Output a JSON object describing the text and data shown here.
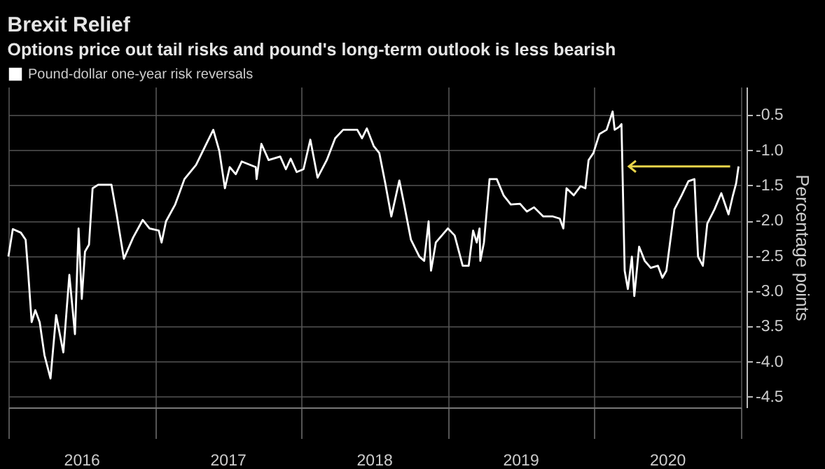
{
  "chart_data": {
    "type": "line",
    "title": "Brexit Relief",
    "subtitle": "Options price out tail risks and pound's long-term outlook is less bearish",
    "ylabel": "Percentage points",
    "x": [
      "2016-01-01",
      "2016-01-12",
      "2016-02-01",
      "2016-02-13",
      "2016-02-19",
      "2016-02-28",
      "2016-03-08",
      "2016-03-19",
      "2016-03-31",
      "2016-04-15",
      "2016-04-29",
      "2016-05-17",
      "2016-06-01",
      "2016-06-15",
      "2016-06-24",
      "2016-07-02",
      "2016-07-10",
      "2016-07-20",
      "2016-07-29",
      "2016-08-12",
      "2016-09-14",
      "2016-09-27",
      "2016-10-15",
      "2016-11-07",
      "2016-12-01",
      "2016-12-18",
      "2017-01-10",
      "2017-01-17",
      "2017-01-28",
      "2017-02-20",
      "2017-03-15",
      "2017-04-13",
      "2017-05-06",
      "2017-05-26",
      "2017-06-10",
      "2017-06-24",
      "2017-07-06",
      "2017-07-21",
      "2017-08-05",
      "2017-09-09",
      "2017-09-11",
      "2017-09-23",
      "2017-10-11",
      "2017-11-09",
      "2017-11-23",
      "2017-12-05",
      "2017-12-20",
      "2018-01-06",
      "2018-01-23",
      "2018-02-10",
      "2018-03-05",
      "2018-03-26",
      "2018-04-15",
      "2018-05-20",
      "2018-06-01",
      "2018-06-13",
      "2018-06-30",
      "2018-07-14",
      "2018-07-29",
      "2018-08-13",
      "2018-09-02",
      "2018-09-14",
      "2018-10-01",
      "2018-10-22",
      "2018-11-03",
      "2018-11-14",
      "2018-11-20",
      "2018-12-02",
      "2019-01-01",
      "2019-01-18",
      "2019-02-07",
      "2019-02-22",
      "2019-03-05",
      "2019-03-14",
      "2019-03-21",
      "2019-03-23",
      "2019-04-01",
      "2019-04-15",
      "2019-05-03",
      "2019-05-20",
      "2019-06-07",
      "2019-06-30",
      "2019-07-17",
      "2019-08-04",
      "2019-08-27",
      "2019-09-20",
      "2019-10-07",
      "2019-10-16",
      "2019-10-24",
      "2019-11-11",
      "2019-11-28",
      "2019-12-10",
      "2019-12-18",
      "2019-12-30",
      "2020-01-14",
      "2020-02-01",
      "2020-02-16",
      "2020-02-21",
      "2020-03-03",
      "2020-03-09",
      "2020-03-17",
      "2020-03-25",
      "2020-04-04",
      "2020-04-10",
      "2020-04-22",
      "2020-05-06",
      "2020-05-21",
      "2020-06-08",
      "2020-06-19",
      "2020-06-29",
      "2020-07-19",
      "2020-08-06",
      "2020-08-23",
      "2020-09-07",
      "2020-09-16",
      "2020-09-28",
      "2020-10-09",
      "2020-10-27",
      "2020-11-13",
      "2020-12-01",
      "2020-12-12",
      "2020-12-20",
      "2020-12-26"
    ],
    "series": [
      {
        "name": "Pound-dollar one-year risk reversals",
        "color": "#ffffff",
        "values": [
          -2.51,
          -2.12,
          -2.17,
          -2.27,
          -2.71,
          -3.44,
          -3.27,
          -3.44,
          -3.91,
          -4.24,
          -3.34,
          -3.87,
          -2.77,
          -3.61,
          -2.11,
          -3.11,
          -2.44,
          -2.34,
          -1.54,
          -1.49,
          -1.49,
          -1.91,
          -2.54,
          -2.24,
          -1.99,
          -2.11,
          -2.14,
          -2.31,
          -2.01,
          -1.77,
          -1.41,
          -1.21,
          -0.94,
          -0.71,
          -1.01,
          -1.54,
          -1.24,
          -1.34,
          -1.16,
          -1.24,
          -1.41,
          -0.91,
          -1.14,
          -1.09,
          -1.27,
          -1.12,
          -1.31,
          -1.27,
          -0.85,
          -1.39,
          -1.14,
          -0.83,
          -0.71,
          -0.71,
          -0.83,
          -0.69,
          -0.94,
          -1.04,
          -1.47,
          -1.94,
          -1.43,
          -1.77,
          -2.27,
          -2.51,
          -2.57,
          -2.01,
          -2.71,
          -2.31,
          -2.11,
          -2.21,
          -2.64,
          -2.64,
          -2.14,
          -2.31,
          -2.11,
          -2.57,
          -2.31,
          -1.41,
          -1.41,
          -1.64,
          -1.77,
          -1.76,
          -1.87,
          -1.81,
          -1.94,
          -1.94,
          -1.97,
          -2.11,
          -1.54,
          -1.64,
          -1.51,
          -1.54,
          -1.14,
          -1.04,
          -0.77,
          -0.71,
          -0.45,
          -0.71,
          -0.67,
          -0.63,
          -2.71,
          -2.97,
          -2.51,
          -3.07,
          -2.37,
          -2.57,
          -2.67,
          -2.64,
          -2.81,
          -2.71,
          -1.84,
          -1.64,
          -1.44,
          -1.41,
          -2.51,
          -2.64,
          -2.04,
          -1.84,
          -1.61,
          -1.91,
          -1.64,
          -1.47,
          -1.23
        ]
      }
    ],
    "xlim": [
      "2016-01-01",
      "2021-01-01"
    ],
    "xticks": [
      {
        "value": "2016-01-01",
        "label": null
      },
      {
        "value": "2016-07-01",
        "label": "2016"
      },
      {
        "value": "2017-01-01",
        "label": null
      },
      {
        "value": "2017-07-01",
        "label": "2017"
      },
      {
        "value": "2018-01-01",
        "label": null
      },
      {
        "value": "2018-07-01",
        "label": "2018"
      },
      {
        "value": "2019-01-01",
        "label": null
      },
      {
        "value": "2019-07-01",
        "label": "2019"
      },
      {
        "value": "2020-01-01",
        "label": null
      },
      {
        "value": "2020-07-01",
        "label": "2020"
      },
      {
        "value": "2021-01-01",
        "label": null
      }
    ],
    "ylim": [
      -4.65,
      -0.1
    ],
    "yticks": [
      {
        "value": -0.5,
        "label": "-0.5"
      },
      {
        "value": -1,
        "label": "-1.0"
      },
      {
        "value": -1.5,
        "label": "-1.5"
      },
      {
        "value": -2,
        "label": "-2.0"
      },
      {
        "value": -2.5,
        "label": "-2.5"
      },
      {
        "value": -3,
        "label": "-3.0"
      },
      {
        "value": -3.5,
        "label": "-3.5"
      },
      {
        "value": -4,
        "label": "-4.0"
      },
      {
        "value": -4.5,
        "label": "-4.5"
      }
    ],
    "grid": true,
    "legend": "top left"
  }
}
